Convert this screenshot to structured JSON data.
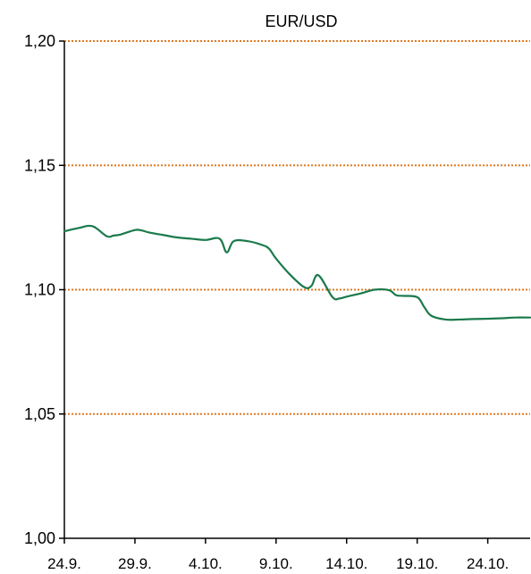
{
  "chart_data": {
    "type": "line",
    "title": "EUR/USD",
    "xlabel": "",
    "ylabel": "",
    "ylim": [
      1.0,
      1.2
    ],
    "y_ticks": [
      "1,00",
      "1,05",
      "1,10",
      "1,15",
      "1,20"
    ],
    "y_tick_values": [
      1.0,
      1.05,
      1.1,
      1.15,
      1.2
    ],
    "x_ticks": [
      "24.9.",
      "29.9.",
      "4.10.",
      "9.10.",
      "14.10.",
      "19.10.",
      "24.10."
    ],
    "x_tick_days": [
      0,
      5,
      10,
      15,
      20,
      25,
      30
    ],
    "xlim_days": [
      0,
      33
    ],
    "grid": "horizontal dotted",
    "colors": {
      "line": "#1a7a4c",
      "grid": "#e07a22",
      "axis": "#000000"
    },
    "series": [
      {
        "x_days": [
          0,
          1,
          2,
          3,
          3.5,
          4,
          5,
          5.5,
          6,
          7,
          8,
          9,
          10,
          11,
          11.5,
          12,
          13,
          14,
          14.5,
          15,
          16,
          17,
          17.5,
          18,
          19,
          19.5,
          20,
          21,
          22,
          23,
          23.5,
          24,
          25,
          25.5,
          26,
          27,
          28,
          29,
          30,
          31,
          32,
          33
        ],
        "values": [
          1.1235,
          1.1248,
          1.1255,
          1.1215,
          1.1218,
          1.1222,
          1.124,
          1.1238,
          1.123,
          1.122,
          1.121,
          1.1205,
          1.12,
          1.1205,
          1.115,
          1.1195,
          1.1195,
          1.118,
          1.1165,
          1.1125,
          1.106,
          1.101,
          1.1015,
          1.1058,
          1.097,
          1.0965,
          1.0972,
          1.0985,
          1.1,
          1.0998,
          1.0978,
          1.0975,
          1.097,
          1.093,
          1.0895,
          1.088,
          1.088,
          1.0882,
          1.0883,
          1.0885,
          1.0888,
          1.0888
        ]
      }
    ]
  }
}
